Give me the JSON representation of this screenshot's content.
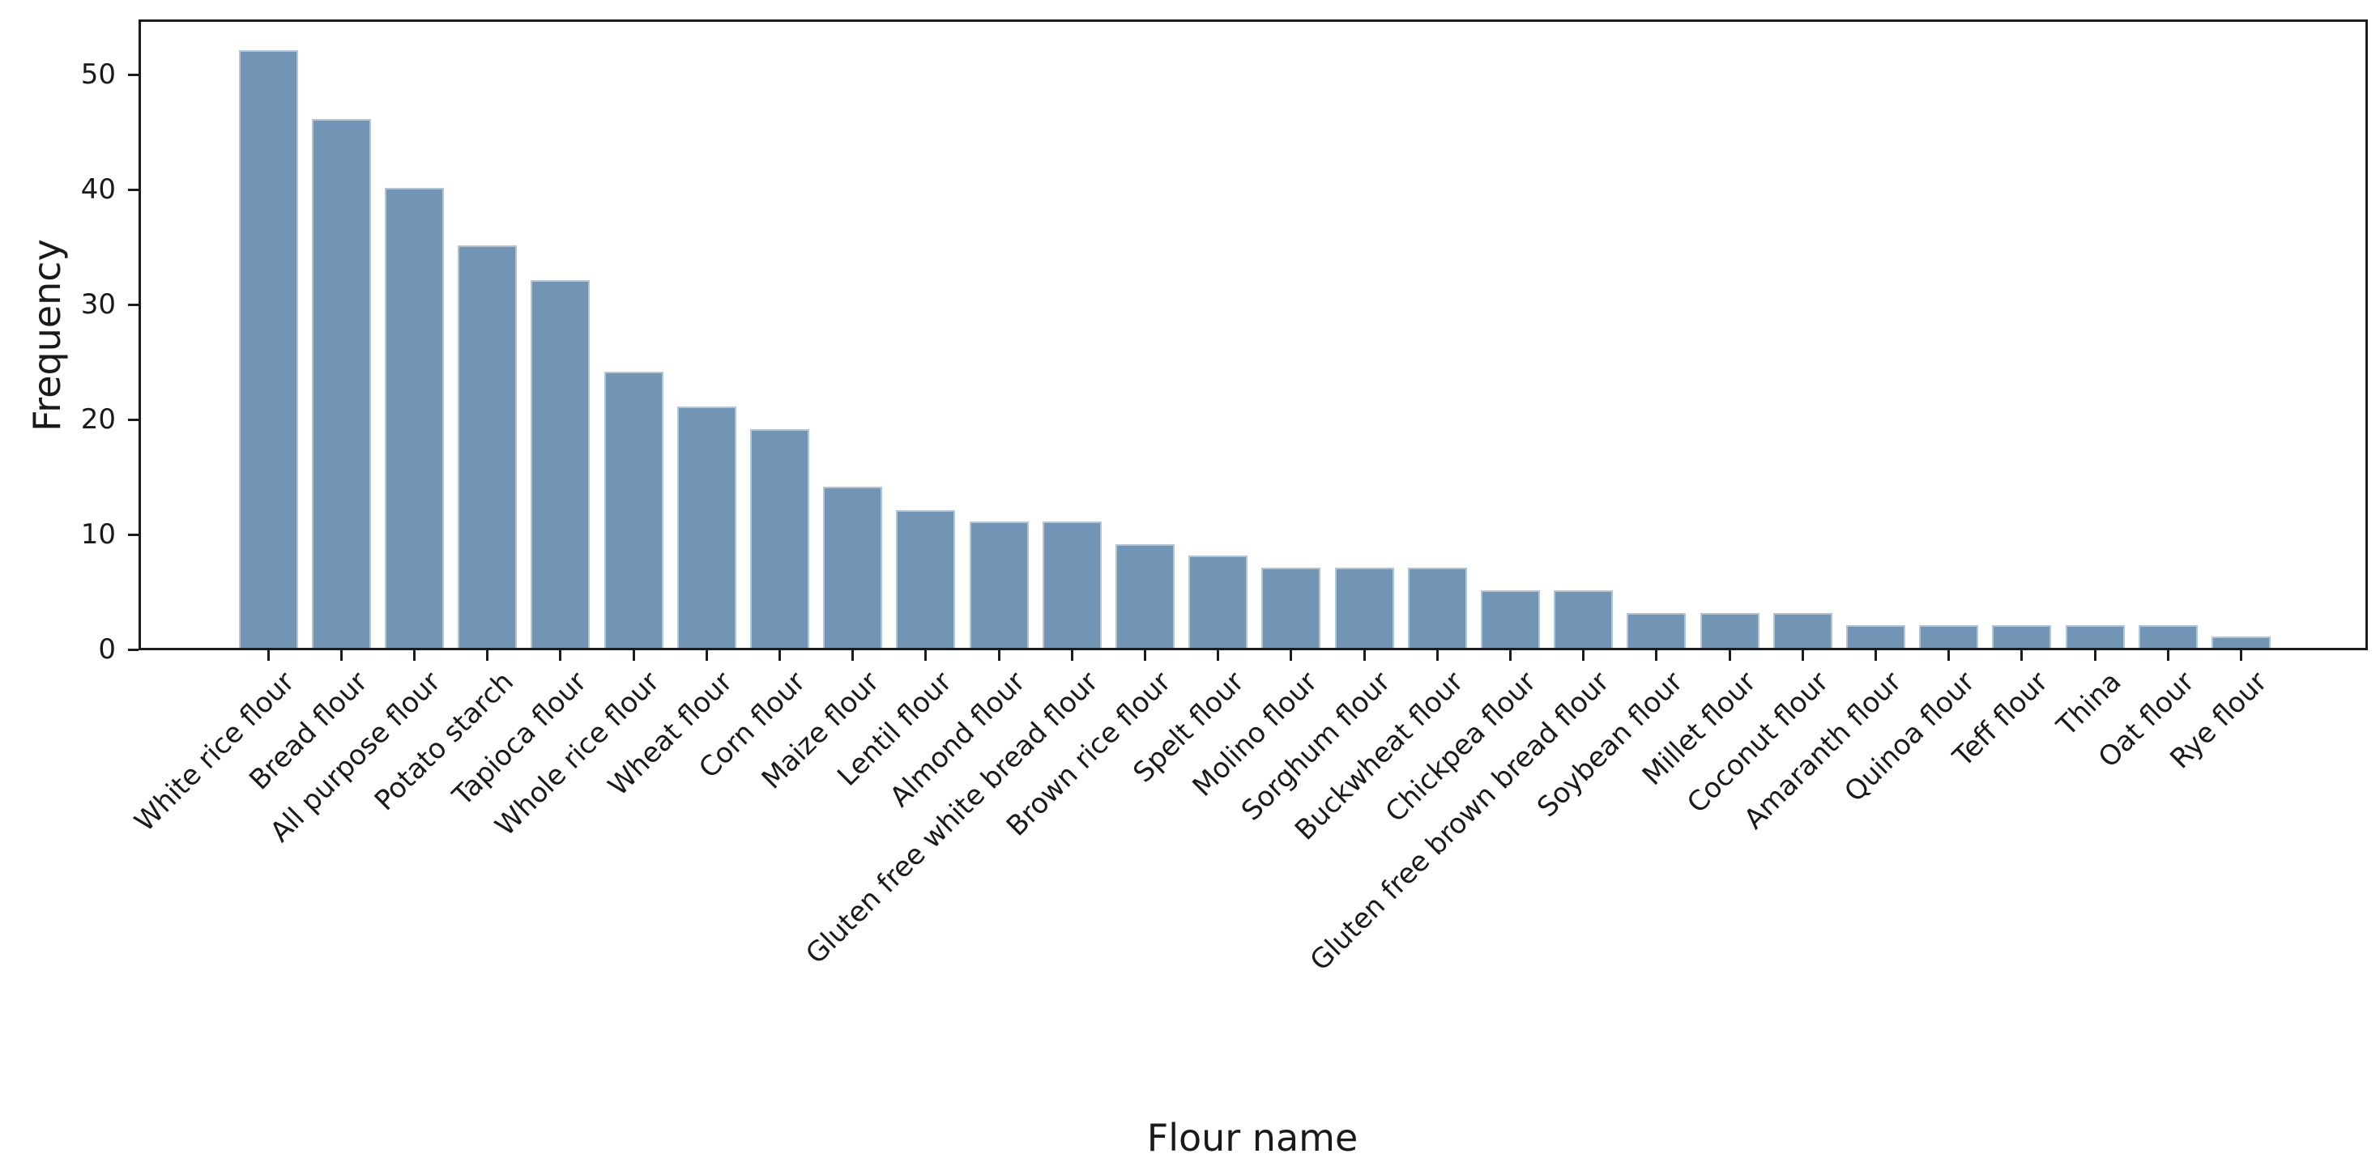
{
  "chart_data": {
    "type": "bar",
    "title": "",
    "xlabel": "Flour name",
    "ylabel": "Frequency",
    "categories": [
      "White rice flour",
      "Bread flour",
      "All purpose flour",
      "Potato starch",
      "Tapioca flour",
      "Whole rice flour",
      "Wheat flour",
      "Corn flour",
      "Maize flour",
      "Lentil flour",
      "Almond flour",
      "Gluten free white bread flour",
      "Brown rice flour",
      "Spelt flour",
      "Molino flour",
      "Sorghum flour",
      "Buckwheat flour",
      "Chickpea flour",
      "Gluten free brown bread flour",
      "Soybean flour",
      "Millet flour",
      "Coconut flour",
      "Amaranth flour",
      "Quinoa flour",
      "Teff flour",
      "Thina",
      "Oat flour",
      "Rye flour"
    ],
    "values": [
      52,
      46,
      40,
      35,
      32,
      24,
      21,
      19,
      14,
      12,
      11,
      11,
      9,
      8,
      7,
      7,
      7,
      5,
      5,
      3,
      3,
      3,
      2,
      2,
      2,
      2,
      2,
      1
    ],
    "yticks": [
      0,
      10,
      20,
      30,
      40,
      50
    ],
    "ylim": [
      0,
      54.5
    ],
    "grid": false,
    "legend_position": "none",
    "bar_color": "#7295b5",
    "bar_edge_color": "#b0c6d8",
    "axis_color": "#1c1c1c",
    "text_color": "#1a1a1a"
  }
}
